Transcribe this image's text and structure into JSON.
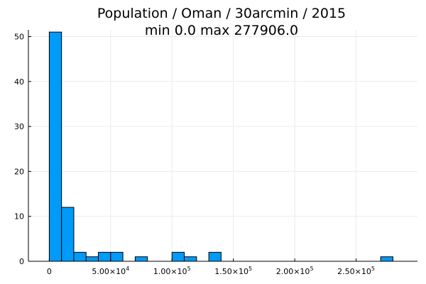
{
  "chart_data": {
    "type": "bar",
    "title": "Population / Oman / 30arcmin / 2015",
    "subtitle": "min 0.0  max 277906.0",
    "xlabel": "",
    "ylabel": "",
    "bar_color": "#009af9",
    "grid": true,
    "legend": "none",
    "bin_width": 10000,
    "bins": [
      {
        "x0": 0,
        "x1": 10000,
        "count": 51
      },
      {
        "x0": 10000,
        "x1": 20000,
        "count": 12
      },
      {
        "x0": 20000,
        "x1": 30000,
        "count": 2
      },
      {
        "x0": 30000,
        "x1": 40000,
        "count": 1
      },
      {
        "x0": 40000,
        "x1": 50000,
        "count": 2
      },
      {
        "x0": 50000,
        "x1": 60000,
        "count": 2
      },
      {
        "x0": 60000,
        "x1": 70000,
        "count": 0
      },
      {
        "x0": 70000,
        "x1": 80000,
        "count": 1
      },
      {
        "x0": 80000,
        "x1": 90000,
        "count": 0
      },
      {
        "x0": 90000,
        "x1": 100000,
        "count": 0
      },
      {
        "x0": 100000,
        "x1": 110000,
        "count": 2
      },
      {
        "x0": 110000,
        "x1": 120000,
        "count": 1
      },
      {
        "x0": 120000,
        "x1": 130000,
        "count": 0
      },
      {
        "x0": 130000,
        "x1": 140000,
        "count": 2
      },
      {
        "x0": 270000,
        "x1": 280000,
        "count": 1
      }
    ],
    "xlim": [
      -17000,
      300000
    ],
    "ylim": [
      0,
      51.5
    ],
    "xticks": [
      {
        "value": 0,
        "mantissa": "0",
        "exp": ""
      },
      {
        "value": 50000,
        "mantissa": "5.00×10",
        "exp": "4"
      },
      {
        "value": 100000,
        "mantissa": "1.00×10",
        "exp": "5"
      },
      {
        "value": 150000,
        "mantissa": "1.50×10",
        "exp": "5"
      },
      {
        "value": 200000,
        "mantissa": "2.00×10",
        "exp": "5"
      },
      {
        "value": 250000,
        "mantissa": "2.50×10",
        "exp": "5"
      }
    ],
    "yticks": [
      0,
      10,
      20,
      30,
      40,
      50
    ]
  }
}
